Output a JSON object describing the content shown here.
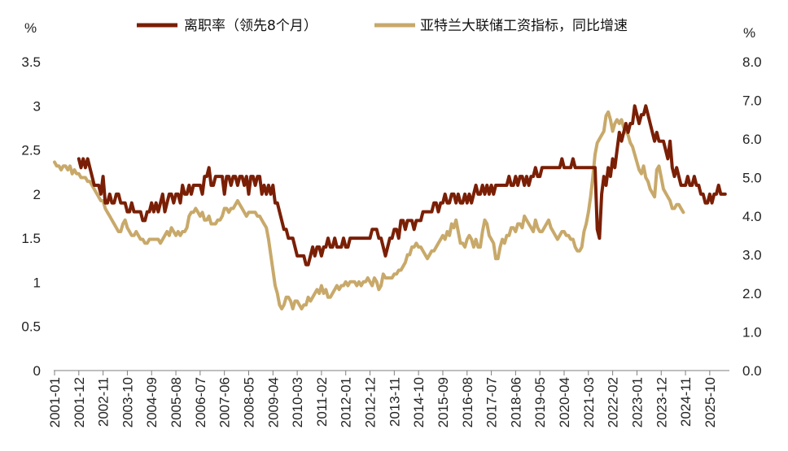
{
  "chart_data": {
    "type": "line",
    "unit_left": "%",
    "unit_right": "%",
    "legend": {
      "series1": "离职率（领先8个月）",
      "series2": "亚特兰大联储工资指标，同比增速"
    },
    "colors": {
      "series1": "#7a1f05",
      "series2": "#c8a96a",
      "axis": "#7f7f7f"
    },
    "y_left": {
      "range": [
        0,
        3.5
      ],
      "ticks": [
        "0",
        "0.5",
        "1",
        "1.5",
        "2",
        "2.5",
        "3",
        "3.5"
      ]
    },
    "y_right": {
      "range": [
        0,
        8
      ],
      "ticks": [
        "0.0",
        "1.0",
        "2.0",
        "3.0",
        "4.0",
        "5.0",
        "6.0",
        "7.0",
        "8.0"
      ]
    },
    "x_ticks": [
      "2001-01",
      "2001-12",
      "2002-11",
      "2003-10",
      "2004-09",
      "2005-08",
      "2006-07",
      "2007-06",
      "2008-05",
      "2009-04",
      "2010-03",
      "2011-02",
      "2012-01",
      "2012-12",
      "2013-11",
      "2014-10",
      "2015-09",
      "2016-08",
      "2017-07",
      "2018-06",
      "2019-05",
      "2020-04",
      "2021-03",
      "2022-02",
      "2023-01",
      "2023-12",
      "2024-11",
      "2025-10"
    ],
    "series": [
      {
        "name": "离职率（领先8个月）",
        "axis": "left",
        "x_start": "2001-12",
        "monthly_values": [
          2.4,
          2.3,
          2.4,
          2.3,
          2.4,
          2.3,
          2.2,
          2.1,
          2.1,
          2.1,
          2.0,
          2.2,
          1.9,
          1.9,
          2.0,
          1.9,
          1.9,
          2.0,
          2.0,
          1.9,
          1.9,
          1.9,
          1.8,
          1.8,
          1.9,
          1.8,
          1.8,
          1.8,
          1.8,
          1.7,
          1.7,
          1.8,
          1.8,
          1.9,
          1.8,
          1.9,
          1.8,
          1.9,
          2.0,
          1.8,
          1.9,
          2.0,
          2.0,
          1.9,
          2.0,
          2.0,
          1.9,
          2.1,
          2.0,
          2.0,
          2.1,
          2.0,
          2.1,
          2.1,
          2.1,
          2.1,
          2.0,
          2.2,
          2.2,
          2.3,
          2.1,
          2.1,
          2.2,
          2.2,
          2.2,
          2.2,
          2.0,
          2.2,
          2.2,
          2.1,
          2.2,
          2.2,
          2.1,
          2.2,
          2.2,
          2.1,
          2.2,
          2.0,
          2.2,
          2.2,
          2.1,
          2.2,
          2.2,
          2.0,
          2.1,
          2.0,
          2.1,
          2.0,
          2.1,
          1.9,
          1.9,
          1.8,
          1.7,
          1.6,
          1.6,
          1.5,
          1.5,
          1.5,
          1.4,
          1.3,
          1.3,
          1.3,
          1.3,
          1.2,
          1.2,
          1.3,
          1.4,
          1.3,
          1.4,
          1.4,
          1.3,
          1.4,
          1.4,
          1.5,
          1.4,
          1.4,
          1.5,
          1.4,
          1.4,
          1.4,
          1.5,
          1.4,
          1.4,
          1.5,
          1.5,
          1.5,
          1.5,
          1.5,
          1.5,
          1.5,
          1.5,
          1.5,
          1.5,
          1.6,
          1.6,
          1.6,
          1.5,
          1.5,
          1.4,
          1.3,
          1.4,
          1.5,
          1.5,
          1.6,
          1.6,
          1.5,
          1.7,
          1.7,
          1.6,
          1.7,
          1.7,
          1.7,
          1.6,
          1.7,
          1.7,
          1.7,
          1.8,
          1.8,
          1.8,
          1.8,
          1.8,
          1.9,
          1.9,
          1.8,
          1.9,
          1.9,
          2.0,
          1.9,
          1.9,
          2.0,
          2.0,
          1.9,
          2.0,
          1.9,
          1.9,
          2.0,
          1.9,
          2.0,
          1.9,
          2.0,
          2.1,
          2.0,
          2.0,
          2.1,
          2.0,
          2.1,
          2.0,
          2.1,
          2.0,
          2.1,
          2.1,
          2.1,
          2.1,
          2.1,
          2.1,
          2.2,
          2.1,
          2.1,
          2.2,
          2.1,
          2.2,
          2.2,
          2.1,
          2.2,
          2.1,
          2.2,
          2.2,
          2.3,
          2.2,
          2.2,
          2.3,
          2.3,
          2.3,
          2.3,
          2.3,
          2.3,
          2.3,
          2.3,
          2.3,
          2.4,
          2.3,
          2.3,
          2.3,
          2.3,
          2.4,
          2.3,
          2.3,
          2.3,
          2.3,
          2.3,
          2.3,
          2.3,
          2.3,
          2.3,
          2.3,
          1.6,
          1.5,
          2.0,
          2.2,
          2.1,
          2.3,
          2.2,
          2.4,
          2.3,
          2.5,
          2.7,
          2.6,
          2.7,
          2.8,
          2.7,
          2.8,
          2.8,
          3.0,
          2.9,
          2.8,
          2.9,
          2.9,
          3.0,
          2.9,
          2.8,
          2.7,
          2.6,
          2.7,
          2.6,
          2.6,
          2.6,
          2.5,
          2.4,
          2.6,
          2.3,
          2.2,
          2.3,
          2.2,
          2.1,
          2.1,
          2.1,
          2.2,
          2.1,
          2.1,
          2.2,
          2.1,
          2.1,
          2.0,
          2.0,
          1.9,
          1.9,
          2.0,
          1.9,
          2.0,
          2.0,
          2.1,
          2.0,
          2.0,
          2.0
        ]
      },
      {
        "name": "亚特兰大联储工资指标，同比增速",
        "axis": "right",
        "x_start": "2001-01",
        "monthly_values": [
          5.4,
          5.3,
          5.3,
          5.2,
          5.3,
          5.3,
          5.2,
          5.3,
          5.1,
          5.2,
          5.1,
          5.1,
          5.0,
          5.0,
          5.0,
          4.9,
          4.9,
          4.8,
          4.7,
          4.6,
          4.5,
          4.4,
          4.4,
          4.2,
          4.1,
          4.0,
          3.9,
          3.8,
          3.7,
          3.6,
          3.6,
          3.8,
          3.9,
          3.7,
          3.6,
          3.5,
          3.5,
          3.6,
          3.5,
          3.4,
          3.4,
          3.3,
          3.3,
          3.4,
          3.4,
          3.4,
          3.4,
          3.4,
          3.3,
          3.4,
          3.5,
          3.6,
          3.5,
          3.7,
          3.6,
          3.5,
          3.6,
          3.5,
          3.6,
          3.6,
          3.7,
          4.0,
          4.1,
          4.1,
          4.2,
          4.1,
          4.0,
          4.1,
          3.9,
          3.9,
          4.0,
          3.8,
          3.8,
          3.8,
          3.9,
          3.9,
          4.0,
          4.2,
          4.2,
          4.1,
          4.2,
          4.2,
          4.3,
          4.4,
          4.3,
          4.2,
          4.1,
          4.0,
          4.1,
          4.1,
          4.1,
          4.1,
          4.0,
          4.0,
          3.9,
          3.8,
          3.7,
          3.4,
          3.0,
          2.6,
          2.2,
          2.0,
          1.7,
          1.6,
          1.7,
          1.9,
          1.9,
          1.8,
          1.6,
          1.8,
          1.8,
          1.7,
          1.6,
          1.7,
          1.7,
          1.9,
          1.8,
          1.9,
          2.0,
          2.1,
          2.0,
          2.2,
          2.0,
          2.1,
          1.9,
          1.9,
          2.0,
          2.1,
          2.2,
          2.1,
          2.2,
          2.2,
          2.3,
          2.2,
          2.3,
          2.3,
          2.3,
          2.2,
          2.3,
          2.2,
          2.3,
          2.3,
          2.4,
          2.3,
          2.2,
          2.4,
          2.3,
          2.1,
          2.2,
          2.5,
          2.4,
          2.4,
          2.4,
          2.4,
          2.5,
          2.5,
          2.6,
          2.6,
          2.7,
          2.8,
          3.0,
          3.0,
          3.2,
          3.2,
          3.3,
          3.2,
          3.2,
          3.1,
          3.0,
          2.9,
          3.0,
          3.1,
          3.1,
          3.2,
          3.3,
          3.4,
          3.5,
          3.4,
          3.6,
          3.5,
          3.8,
          3.7,
          3.9,
          3.6,
          3.3,
          3.3,
          3.2,
          3.4,
          3.5,
          3.4,
          3.2,
          3.4,
          3.2,
          3.2,
          3.6,
          3.9,
          3.8,
          3.5,
          3.4,
          3.3,
          2.9,
          2.9,
          3.2,
          3.4,
          3.3,
          3.5,
          3.5,
          3.7,
          3.7,
          3.6,
          3.8,
          3.8,
          3.7,
          4.0,
          3.9,
          3.8,
          3.7,
          3.6,
          3.9,
          3.7,
          3.6,
          3.6,
          3.7,
          3.8,
          3.9,
          3.7,
          3.6,
          3.5,
          3.4,
          3.5,
          3.6,
          3.6,
          3.5,
          3.5,
          3.4,
          3.4,
          3.2,
          3.1,
          3.1,
          3.2,
          3.6,
          3.8,
          4.1,
          4.5,
          5.0,
          5.6,
          5.9,
          6.0,
          6.1,
          6.2,
          6.6,
          6.7,
          6.5,
          6.2,
          6.4,
          6.5,
          6.4,
          6.5,
          6.3,
          6.2,
          6.1,
          5.9,
          5.8,
          5.6,
          5.4,
          5.2,
          5.1,
          5.3,
          5.0,
          4.9,
          4.7,
          4.6,
          4.5,
          5.2,
          5.3,
          5.0,
          4.7,
          4.6,
          4.5,
          4.4,
          4.2,
          4.2,
          4.3,
          4.3,
          4.2,
          4.1
        ]
      }
    ]
  }
}
